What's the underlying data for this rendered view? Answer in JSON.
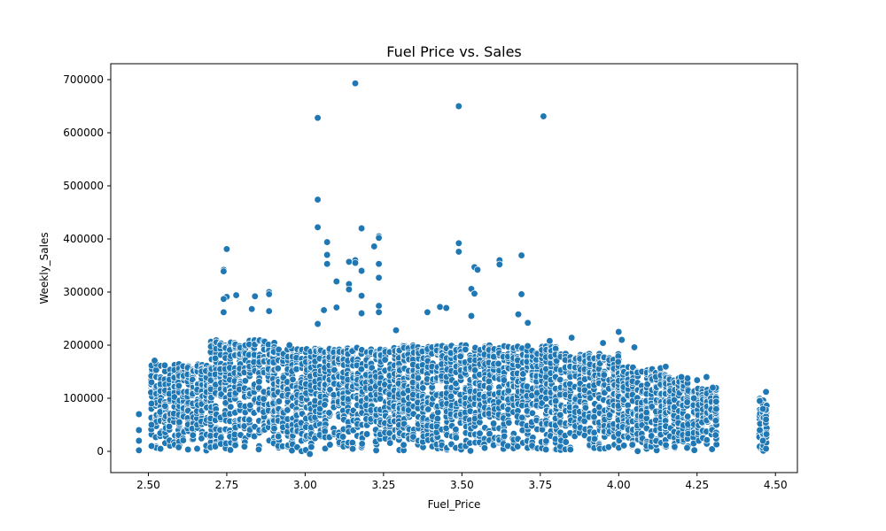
{
  "chart_data": {
    "type": "scatter",
    "title": "Fuel Price vs. Sales",
    "xlabel": "Fuel_Price",
    "ylabel": "Weekly_Sales",
    "xlim": [
      2.38,
      4.57
    ],
    "ylim": [
      -40000,
      730000
    ],
    "xticks": [
      2.5,
      2.75,
      3.0,
      3.25,
      3.5,
      3.75,
      4.0,
      4.25,
      4.5
    ],
    "xtick_labels": [
      "2.50",
      "2.75",
      "3.00",
      "3.25",
      "3.50",
      "3.75",
      "4.00",
      "4.25",
      "4.50"
    ],
    "yticks": [
      0,
      100000,
      200000,
      300000,
      400000,
      500000,
      600000,
      700000
    ],
    "ytick_labels": [
      "0",
      "100000",
      "200000",
      "300000",
      "400000",
      "500000",
      "600000",
      "700000"
    ],
    "grid": false,
    "marker_color": "#1f77b4",
    "marker_edge_color": "#ffffff",
    "series": [
      {
        "values": [
          [
            3.16,
            693000
          ],
          [
            3.49,
            650000
          ],
          [
            3.76,
            631000
          ],
          [
            3.04,
            628000
          ],
          [
            3.04,
            474000
          ],
          [
            3.04,
            422000
          ],
          [
            3.18,
            420000
          ],
          [
            3.235,
            405000
          ],
          [
            3.235,
            402000
          ],
          [
            3.07,
            394000
          ],
          [
            3.49,
            392000
          ],
          [
            3.22,
            386000
          ],
          [
            2.75,
            381000
          ],
          [
            3.49,
            376000
          ],
          [
            3.07,
            370000
          ],
          [
            3.69,
            369000
          ],
          [
            3.62,
            360000
          ],
          [
            3.16,
            360000
          ],
          [
            3.14,
            357000
          ],
          [
            3.16,
            355000
          ],
          [
            3.07,
            353000
          ],
          [
            3.235,
            353000
          ],
          [
            3.62,
            352000
          ],
          [
            3.54,
            347000
          ],
          [
            3.55,
            342000
          ],
          [
            2.74,
            342000
          ],
          [
            2.74,
            339000
          ],
          [
            3.18,
            340000
          ],
          [
            3.235,
            327000
          ],
          [
            3.1,
            320000
          ],
          [
            3.14,
            315000
          ],
          [
            3.53,
            306000
          ],
          [
            3.14,
            305000
          ],
          [
            2.885,
            300000
          ],
          [
            3.54,
            297000
          ],
          [
            3.69,
            296000
          ],
          [
            2.885,
            296000
          ],
          [
            2.78,
            294000
          ],
          [
            3.18,
            293000
          ],
          [
            2.84,
            292000
          ],
          [
            2.75,
            291000
          ],
          [
            2.74,
            287000
          ],
          [
            3.235,
            274000
          ],
          [
            3.43,
            272000
          ],
          [
            3.1,
            271000
          ],
          [
            3.45,
            270000
          ],
          [
            2.83,
            268000
          ],
          [
            3.06,
            266000
          ],
          [
            3.18,
            260000
          ],
          [
            2.885,
            264000
          ],
          [
            3.235,
            262000
          ],
          [
            3.39,
            262000
          ],
          [
            2.74,
            262000
          ],
          [
            3.53,
            255000
          ],
          [
            3.68,
            258000
          ],
          [
            3.71,
            242000
          ],
          [
            3.04,
            240000
          ],
          [
            4.0,
            225000
          ],
          [
            3.29,
            228000
          ],
          [
            3.78,
            208000
          ],
          [
            3.95,
            204000
          ],
          [
            4.01,
            210000
          ],
          [
            4.05,
            196000
          ],
          [
            3.85,
            214000
          ],
          [
            2.95,
            200000
          ],
          [
            4.2,
            140000
          ],
          [
            4.25,
            134000
          ],
          [
            4.28,
            140000
          ],
          [
            4.3,
            120000
          ],
          [
            4.24,
            100000
          ],
          [
            4.45,
            95000
          ],
          [
            4.47,
            112000
          ],
          [
            4.46,
            80000
          ],
          [
            4.47,
            60000
          ],
          [
            4.45,
            40000
          ],
          [
            4.46,
            20000
          ],
          [
            4.47,
            5000
          ],
          [
            2.47,
            70000
          ],
          [
            2.47,
            40000
          ],
          [
            2.47,
            20000
          ],
          [
            2.47,
            2000
          ],
          [
            2.52,
            171000
          ],
          [
            2.51,
            130000
          ],
          [
            2.51,
            90000
          ],
          [
            2.51,
            50000
          ],
          [
            2.51,
            10000
          ],
          [
            3.015,
            -5000
          ]
        ]
      }
    ],
    "dense_bands": [
      {
        "x_start": 2.51,
        "x_end": 2.7,
        "y_top": 165000
      },
      {
        "x_start": 2.7,
        "x_end": 2.9,
        "y_top": 210000
      },
      {
        "x_start": 2.9,
        "x_end": 3.3,
        "y_top": 195000
      },
      {
        "x_start": 3.3,
        "x_end": 3.8,
        "y_top": 200000
      },
      {
        "x_start": 3.8,
        "x_end": 4.0,
        "y_top": 185000
      },
      {
        "x_start": 4.0,
        "x_end": 4.15,
        "y_top": 160000
      },
      {
        "x_start": 4.15,
        "x_end": 4.22,
        "y_top": 140000
      },
      {
        "x_start": 4.24,
        "x_end": 4.31,
        "y_top": 120000
      },
      {
        "x_start": 4.45,
        "x_end": 4.47,
        "y_top": 100000
      }
    ]
  }
}
